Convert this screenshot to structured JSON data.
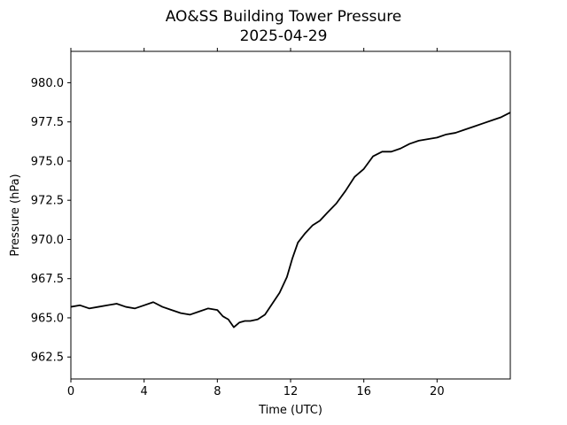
{
  "chart_data": {
    "type": "line",
    "title": "AO&SS Building Tower Pressure",
    "subtitle": "2025-04-29",
    "xlabel": "Time (UTC)",
    "ylabel": "Pressure (hPa)",
    "xlim": [
      0,
      24
    ],
    "ylim": [
      961.1,
      982.0
    ],
    "xticks": [
      0,
      4,
      8,
      12,
      16,
      20
    ],
    "xtick_labels": [
      "0",
      "4",
      "8",
      "12",
      "16",
      "20"
    ],
    "yticks": [
      962.5,
      965.0,
      967.5,
      970.0,
      972.5,
      975.0,
      977.5,
      980.0
    ],
    "ytick_labels": [
      "962.5",
      "965.0",
      "967.5",
      "970.0",
      "972.5",
      "975.0",
      "977.5",
      "980.0"
    ],
    "grid": false,
    "legend": "none",
    "line_color": "#000000",
    "series": [
      {
        "x": [
          0,
          0.5,
          1,
          1.5,
          2,
          2.5,
          3,
          3.5,
          4,
          4.5,
          5,
          5.5,
          6,
          6.5,
          7,
          7.5,
          8,
          8.3,
          8.6,
          8.9,
          9.2,
          9.5,
          9.8,
          10.2,
          10.6,
          11,
          11.4,
          11.8,
          12.1,
          12.4,
          12.8,
          13.2,
          13.6,
          14,
          14.5,
          15,
          15.5,
          16,
          16.5,
          17,
          17.5,
          18,
          18.5,
          19,
          19.5,
          20,
          20.5,
          21,
          21.5,
          22,
          22.5,
          23,
          23.5,
          24
        ],
        "y": [
          965.7,
          965.8,
          965.6,
          965.7,
          965.8,
          965.9,
          965.7,
          965.6,
          965.8,
          966.0,
          965.7,
          965.5,
          965.3,
          965.2,
          965.4,
          965.6,
          965.5,
          965.1,
          964.9,
          964.4,
          964.7,
          964.8,
          964.8,
          964.9,
          965.2,
          965.9,
          966.6,
          967.6,
          968.8,
          969.8,
          970.4,
          970.9,
          971.2,
          971.7,
          972.3,
          973.1,
          974.0,
          974.5,
          975.3,
          975.6,
          975.6,
          975.8,
          976.1,
          976.3,
          976.4,
          976.5,
          976.7,
          976.8,
          977.0,
          977.2,
          977.4,
          977.6,
          977.8,
          978.1
        ]
      }
    ]
  }
}
